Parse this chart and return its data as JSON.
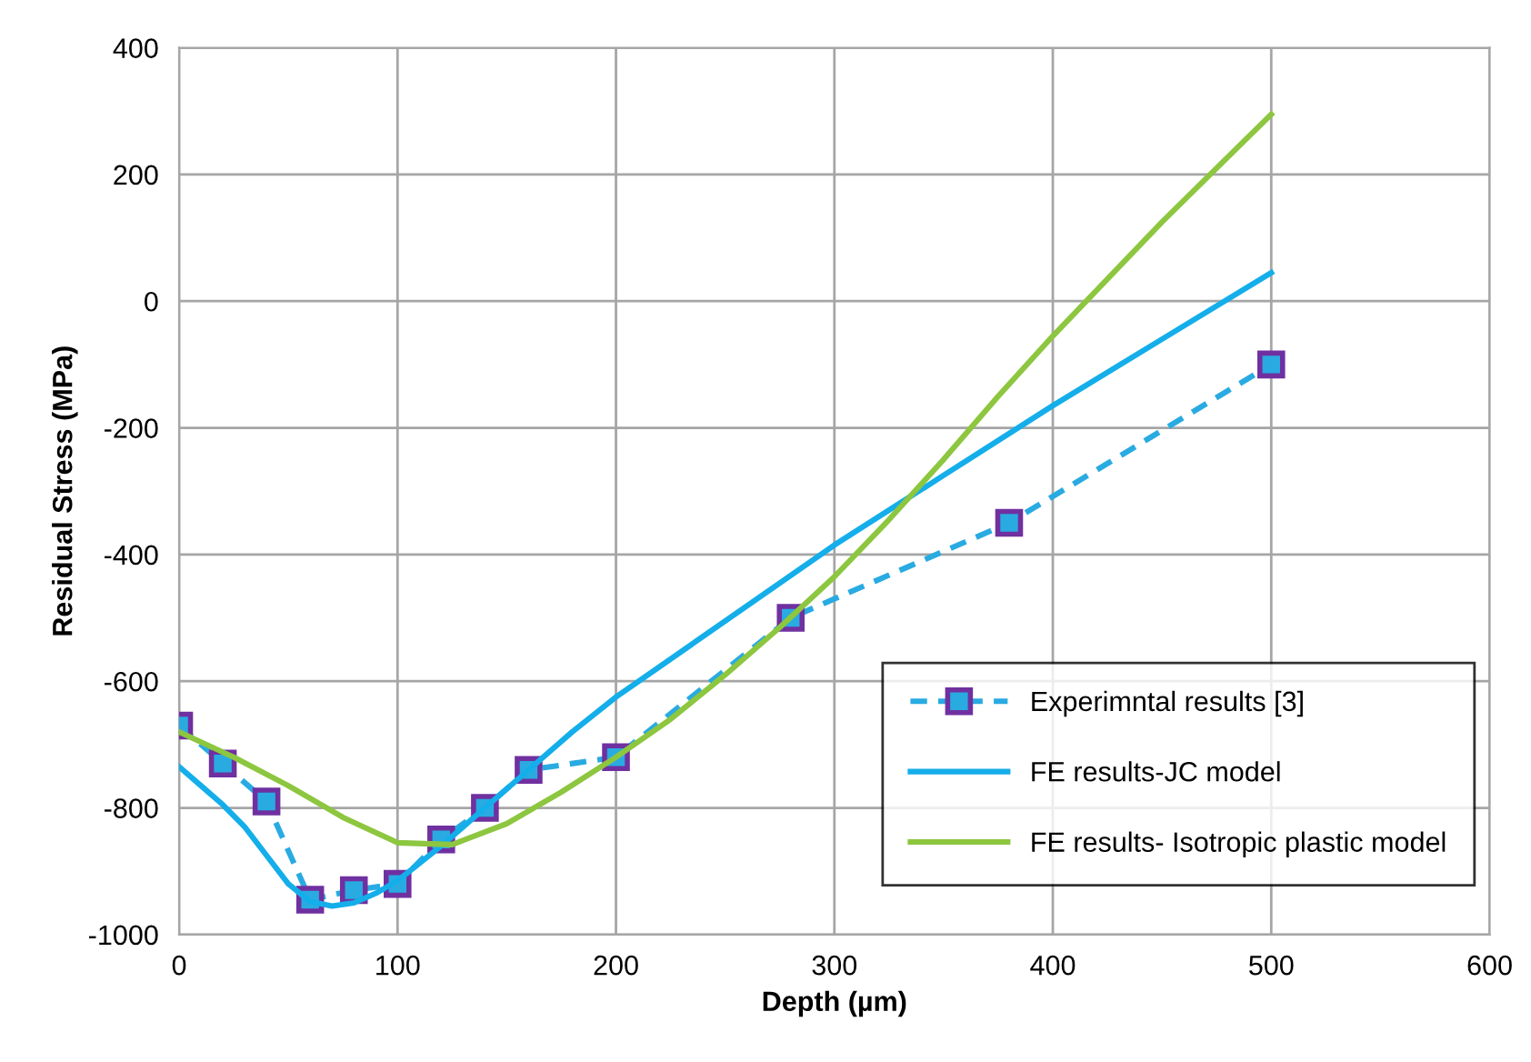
{
  "chart_data": {
    "type": "line",
    "xlabel": "Depth (µm)",
    "ylabel": "Residual Stress (MPa)",
    "xlim": [
      0,
      600
    ],
    "xticks": [
      0,
      100,
      200,
      300,
      400,
      500,
      600
    ],
    "ylim": [
      -1000,
      400
    ],
    "yticks": [
      -1000,
      -800,
      -600,
      -400,
      -200,
      0,
      200,
      400
    ],
    "grid": true,
    "legend": "bottom right",
    "series": [
      {
        "name": "Experimntal results [3]",
        "color": "#29abe2",
        "marker": "square",
        "line_style": "dashed",
        "x": [
          0,
          20,
          40,
          60,
          80,
          100,
          120,
          140,
          160,
          200,
          280,
          380,
          500
        ],
        "values": [
          -670,
          -730,
          -790,
          -945,
          -930,
          -920,
          -850,
          -800,
          -740,
          -720,
          -500,
          -350,
          -100
        ]
      },
      {
        "name": "FE results-JC model",
        "color": "#14aeea",
        "marker": "none",
        "line_style": "solid",
        "x": [
          0,
          10,
          20,
          30,
          40,
          50,
          60,
          70,
          80,
          90,
          100,
          120,
          140,
          160,
          180,
          200,
          250,
          300,
          350,
          400,
          450,
          500
        ],
        "values": [
          -735,
          -765,
          -795,
          -830,
          -875,
          -920,
          -948,
          -955,
          -950,
          -935,
          -915,
          -860,
          -800,
          -740,
          -680,
          -625,
          -505,
          -385,
          -275,
          -165,
          -60,
          45
        ]
      },
      {
        "name": "FE results- Isotropic plastic model",
        "color": "#8dc63f",
        "marker": "none",
        "line_style": "solid",
        "x": [
          0,
          25,
          50,
          75,
          100,
          125,
          150,
          175,
          200,
          225,
          250,
          275,
          300,
          325,
          350,
          375,
          400,
          425,
          450,
          475,
          500
        ],
        "values": [
          -680,
          -720,
          -765,
          -815,
          -855,
          -858,
          -825,
          -775,
          -720,
          -660,
          -590,
          -515,
          -435,
          -345,
          -250,
          -150,
          -55,
          35,
          125,
          210,
          295
        ]
      }
    ]
  }
}
